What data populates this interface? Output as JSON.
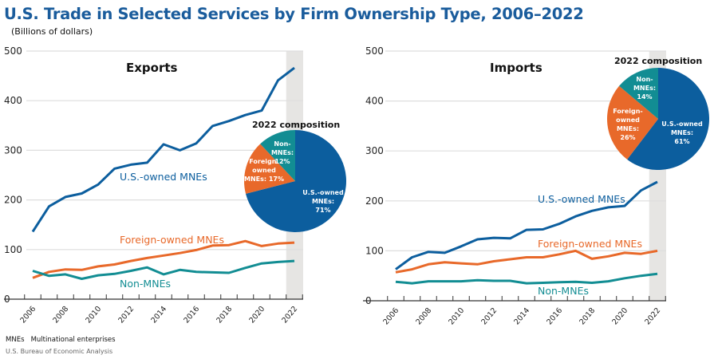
{
  "title": "U.S. Trade in Selected Services by Firm Ownership Type, 2006–2022",
  "subtitle": "(Billions of dollars)",
  "footnote": "MNEs   Multinational enterprises",
  "source": "U.S. Bureau of Economic Analysis",
  "colors": {
    "us_owned": "#0c5e9e",
    "foreign_owned": "#e8692a",
    "non_mnes": "#128d93",
    "highlight": "#e6e5e3",
    "grid": "#dedede"
  },
  "chart_data": [
    {
      "type": "line",
      "title": "Exports",
      "x": [
        2006,
        2007,
        2008,
        2009,
        2010,
        2011,
        2012,
        2013,
        2014,
        2015,
        2016,
        2017,
        2018,
        2019,
        2020,
        2021,
        2022
      ],
      "xtick_labels": [
        "2006",
        "2008",
        "2010",
        "2012",
        "2014",
        "2016",
        "2018",
        "2020",
        "2022"
      ],
      "ytick_labels": [
        "0",
        "100",
        "200",
        "300",
        "400",
        "500"
      ],
      "ylim": [
        0,
        500
      ],
      "grid": true,
      "highlight_year": 2022,
      "series": [
        {
          "name": "U.S.-owned MNEs",
          "key": "us_owned",
          "values": [
            136,
            187,
            206,
            213,
            231,
            263,
            271,
            275,
            312,
            300,
            314,
            349,
            359,
            371,
            380,
            441,
            466
          ]
        },
        {
          "name": "Foreign-owned MNEs",
          "key": "foreign_owned",
          "values": [
            43,
            55,
            60,
            59,
            66,
            70,
            77,
            83,
            88,
            93,
            99,
            108,
            109,
            117,
            107,
            112,
            114
          ]
        },
        {
          "name": "Non-MNEs",
          "key": "non_mnes",
          "values": [
            57,
            47,
            50,
            41,
            48,
            51,
            57,
            64,
            50,
            59,
            55,
            54,
            53,
            63,
            72,
            75,
            77
          ]
        }
      ],
      "pie": {
        "title": "2022 composition",
        "slices": [
          {
            "key": "us_owned",
            "value": 71,
            "label_lines": [
              "U.S.-owned",
              "MNEs:",
              "71%"
            ]
          },
          {
            "key": "foreign_owned",
            "value": 17,
            "label_lines": [
              "Foreign-",
              "owned",
              "MNEs: 17%"
            ]
          },
          {
            "key": "non_mnes",
            "value": 12,
            "label_lines": [
              "Non-",
              "MNEs:",
              "12%"
            ]
          }
        ]
      }
    },
    {
      "type": "line",
      "title": "Imports",
      "x": [
        2006,
        2007,
        2008,
        2009,
        2010,
        2011,
        2012,
        2013,
        2014,
        2015,
        2016,
        2017,
        2018,
        2019,
        2020,
        2021,
        2022
      ],
      "xtick_labels": [
        "2006",
        "2008",
        "2010",
        "2012",
        "2014",
        "2016",
        "2018",
        "2020",
        "2022"
      ],
      "ytick_labels": [
        "0",
        "100",
        "200",
        "300",
        "400",
        "500"
      ],
      "ylim": [
        0,
        500
      ],
      "grid": true,
      "highlight_year": 2022,
      "series": [
        {
          "name": "U.S.-owned MNEs",
          "key": "us_owned",
          "values": [
            63,
            87,
            98,
            96,
            109,
            123,
            126,
            125,
            142,
            143,
            154,
            169,
            180,
            187,
            190,
            221,
            238
          ]
        },
        {
          "name": "Foreign-owned MNEs",
          "key": "foreign_owned",
          "values": [
            57,
            63,
            73,
            77,
            75,
            73,
            79,
            83,
            87,
            87,
            93,
            100,
            84,
            89,
            96,
            94,
            100
          ]
        },
        {
          "name": "Non-MNEs",
          "key": "non_mnes",
          "values": [
            38,
            35,
            39,
            39,
            39,
            41,
            40,
            40,
            35,
            36,
            37,
            38,
            36,
            39,
            45,
            50,
            54
          ]
        }
      ],
      "pie": {
        "title": "2022 composition",
        "slices": [
          {
            "key": "us_owned",
            "value": 61,
            "label_lines": [
              "U.S.-owned",
              "MNEs:",
              "61%"
            ]
          },
          {
            "key": "foreign_owned",
            "value": 26,
            "label_lines": [
              "Foreign-",
              "owned",
              "MNEs:",
              "26%"
            ]
          },
          {
            "key": "non_mnes",
            "value": 14,
            "label_lines": [
              "Non-",
              "MNEs:",
              "14%"
            ]
          }
        ]
      }
    }
  ]
}
